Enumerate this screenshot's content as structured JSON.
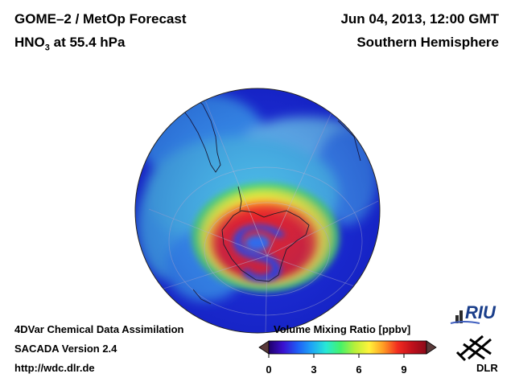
{
  "header": {
    "title_line1": "GOME–2 / MetOp Forecast",
    "title_line2_species": "HNO",
    "title_line2_sub": "3",
    "title_line2_rest": " at 55.4 hPa",
    "date": "Jun 04, 2013, 12:00 GMT",
    "region": "Southern Hemisphere"
  },
  "footer": {
    "line1": "4DVar Chemical Data Assimilation",
    "line2": "SACADA Version 2.4",
    "line3": "http://wdc.dlr.de"
  },
  "colorbar": {
    "title": "Volume Mixing Ratio [ppbv]",
    "ticks": [
      "0",
      "3",
      "6",
      "9"
    ],
    "tick_values": [
      0,
      3,
      6,
      9
    ],
    "range": [
      0,
      10.5
    ],
    "colors": [
      "#20006a",
      "#3a10d0",
      "#1f5cf5",
      "#1ea6f5",
      "#27e8d6",
      "#44f26a",
      "#b8f03a",
      "#fff23a",
      "#ff9b24",
      "#f22b20",
      "#c0101c",
      "#8a0a1a"
    ],
    "under_color": "#5a3a3a",
    "over_color": "#5a3a3a"
  },
  "logos": {
    "riu_text": "RIU",
    "dlr_text": "DLR"
  },
  "map": {
    "projection": "orthographic, south polar",
    "background": "#1b2bd6",
    "colors": {
      "deep_blue": "#1a23c8",
      "light_blue": "#3ea0f0",
      "cyan": "#5ad4e6",
      "green": "#54e06a",
      "yellow": "#f4ec3c",
      "orange": "#ff8a2a",
      "red": "#e6242a",
      "blue_core": "#2840e0"
    }
  }
}
